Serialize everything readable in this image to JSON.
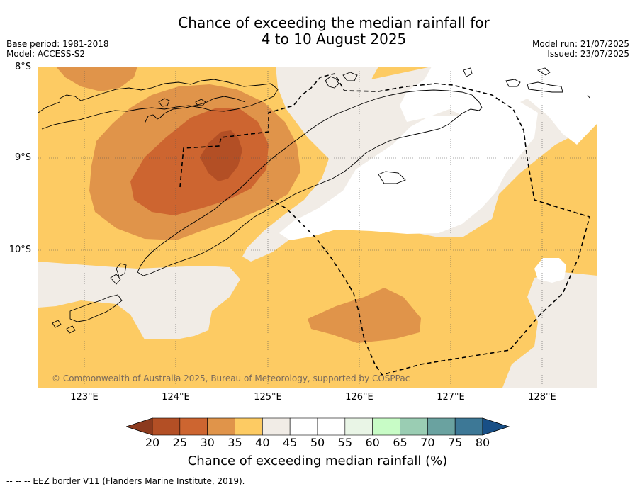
{
  "title_line1": "Chance of exceeding the median rainfall for",
  "title_line2": "4 to 10 August 2025",
  "meta_left": [
    "Base period: 1981-2018",
    "Model: ACCESS-S2"
  ],
  "meta_right": [
    "Model run: 21/07/2025",
    "Issued: 23/07/2025"
  ],
  "lat_labels": [
    "8°S",
    "9°S",
    "10°S"
  ],
  "lon_labels": [
    "123°E",
    "124°E",
    "125°E",
    "126°E",
    "127°E",
    "128°E"
  ],
  "copyright": "© Commonwealth of Australia 2025, Bureau of Meteorology, supported by COSPPac",
  "colorbar": {
    "ticks": [
      "20",
      "25",
      "30",
      "35",
      "40",
      "45",
      "50",
      "55",
      "60",
      "65",
      "70",
      "75",
      "80"
    ],
    "colors": [
      "#8c3a1e",
      "#b34f25",
      "#cd6530",
      "#e0944a",
      "#fdcb63",
      "#f1ece6",
      "#ffffff",
      "#ffffff",
      "#e9f5e6",
      "#c8fcc6",
      "#9acdb3",
      "#6aa2a0",
      "#3d7896",
      "#184f86"
    ],
    "label": "Chance of exceeding median rainfall (%)"
  },
  "footer": "--  --  -- EEZ border V11 (Flanders Marine Institute, 2019)."
}
